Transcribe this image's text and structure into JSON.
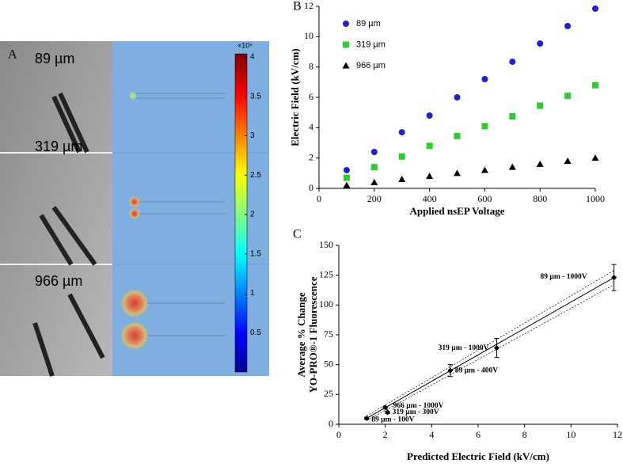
{
  "panel_a": {
    "label": "A",
    "image_labels": [
      "89 µm",
      "319 µm",
      "966 µm"
    ],
    "colorbar": {
      "type": "colorbar",
      "exponent_label": "×10⁵",
      "clim": [
        0,
        4.04
      ],
      "ticks": [
        0.5,
        1,
        1.5,
        2,
        2.5,
        3,
        3.5,
        4
      ]
    }
  },
  "chart_data": [
    {
      "type": "scatter",
      "label": "B",
      "xlabel": "Applied nsEP Voltage",
      "ylabel": "Electric Field (kV/cm)",
      "xlim": [
        0,
        1000
      ],
      "xticks": [
        0,
        200,
        400,
        600,
        800,
        1000
      ],
      "ylim": [
        0,
        12
      ],
      "yticks": [
        0,
        2,
        4,
        6,
        8,
        10,
        12
      ],
      "x": [
        100,
        200,
        300,
        400,
        500,
        600,
        700,
        800,
        900,
        1000
      ],
      "series": [
        {
          "name": "89 µm",
          "color": "#1f1fd6",
          "marker": "circle",
          "values": [
            1.2,
            2.4,
            3.7,
            4.8,
            6.0,
            7.2,
            8.35,
            9.55,
            10.7,
            11.85
          ]
        },
        {
          "name": "319 µm",
          "color": "#2fcc2f",
          "marker": "square",
          "values": [
            0.7,
            1.4,
            2.1,
            2.8,
            3.45,
            4.1,
            4.75,
            5.45,
            6.1,
            6.8
          ]
        },
        {
          "name": "966 µm",
          "color": "#000000",
          "marker": "triangle",
          "values": [
            0.2,
            0.4,
            0.6,
            0.8,
            1.0,
            1.2,
            1.4,
            1.6,
            1.8,
            2.0
          ]
        }
      ]
    },
    {
      "type": "errorbar",
      "label": "C",
      "xlabel": "Predicted Electric Field (kV/cm)",
      "ylabel": [
        "Average % Change",
        "YO-PRO®-1  Fluorescence"
      ],
      "xlim": [
        0,
        12
      ],
      "xticks": [
        0,
        2,
        4,
        6,
        8,
        10,
        12
      ],
      "ylim": [
        0,
        150
      ],
      "yticks": [
        0,
        25,
        50,
        75,
        100,
        125,
        150
      ],
      "x": [
        1.2,
        2.0,
        2.1,
        4.8,
        6.8,
        11.85
      ],
      "values": [
        5,
        14,
        10,
        45,
        64,
        123
      ],
      "errors": [
        1,
        1,
        1,
        5,
        8,
        11
      ],
      "point_labels": [
        "89 µm - 100V",
        "966 µm - 1000V",
        "319 µm - 300V",
        "89 µm - 400V",
        "319 µm - 1000V",
        "89 µm - 1000V"
      ]
    }
  ]
}
